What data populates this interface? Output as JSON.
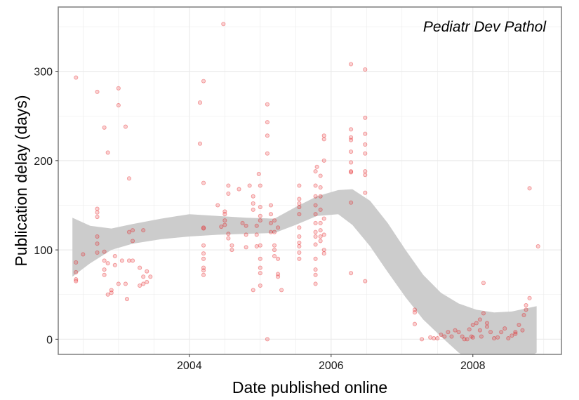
{
  "chart_data": {
    "type": "scatter",
    "title": "",
    "annotation": "Pediatr Dev Pathol",
    "xlabel": "Date published online",
    "ylabel": "Publication delay (days)",
    "xlim": [
      2002.15,
      2009.25
    ],
    "ylim": [
      -17,
      372
    ],
    "x_ticks": [
      2004,
      2006,
      2008
    ],
    "x_tick_labels": [
      "2004",
      "2006",
      "2008"
    ],
    "y_ticks": [
      0,
      100,
      200,
      300
    ],
    "y_tick_labels": [
      "0",
      "100",
      "200",
      "300"
    ],
    "grid": true,
    "point_color": "#e41a1c",
    "band_color": "#cccccc",
    "points": [
      [
        2002.4,
        293
      ],
      [
        2002.4,
        86
      ],
      [
        2002.4,
        75
      ],
      [
        2002.4,
        67
      ],
      [
        2002.4,
        65
      ],
      [
        2002.5,
        95
      ],
      [
        2002.7,
        277
      ],
      [
        2002.7,
        146
      ],
      [
        2002.7,
        142
      ],
      [
        2002.7,
        137
      ],
      [
        2002.7,
        115
      ],
      [
        2002.7,
        107
      ],
      [
        2002.7,
        97
      ],
      [
        2002.8,
        237
      ],
      [
        2002.8,
        98
      ],
      [
        2002.8,
        88
      ],
      [
        2002.8,
        78
      ],
      [
        2002.8,
        72
      ],
      [
        2002.85,
        209
      ],
      [
        2002.85,
        85
      ],
      [
        2002.85,
        50
      ],
      [
        2002.9,
        55
      ],
      [
        2002.9,
        52
      ],
      [
        2002.95,
        93
      ],
      [
        2002.95,
        83
      ],
      [
        2003.05,
        88
      ],
      [
        2003.0,
        62
      ],
      [
        2003.1,
        62
      ],
      [
        2003.0,
        281
      ],
      [
        2003.0,
        262
      ],
      [
        2003.1,
        238
      ],
      [
        2003.15,
        180
      ],
      [
        2003.2,
        122
      ],
      [
        2003.15,
        120
      ],
      [
        2003.2,
        110
      ],
      [
        2003.15,
        88
      ],
      [
        2003.2,
        88
      ],
      [
        2003.12,
        45
      ],
      [
        2003.35,
        122
      ],
      [
        2003.3,
        80
      ],
      [
        2003.4,
        76
      ],
      [
        2003.35,
        70
      ],
      [
        2003.45,
        70
      ],
      [
        2003.4,
        64
      ],
      [
        2003.35,
        62
      ],
      [
        2003.3,
        60
      ],
      [
        2004.15,
        265
      ],
      [
        2004.15,
        219
      ],
      [
        2004.2,
        289
      ],
      [
        2004.2,
        175
      ],
      [
        2004.2,
        125
      ],
      [
        2004.2,
        105
      ],
      [
        2004.2,
        96
      ],
      [
        2004.2,
        90
      ],
      [
        2004.2,
        80
      ],
      [
        2004.2,
        77
      ],
      [
        2004.2,
        72
      ],
      [
        2004.2,
        124
      ],
      [
        2004.4,
        150
      ],
      [
        2004.45,
        126
      ],
      [
        2004.48,
        353
      ],
      [
        2004.5,
        143
      ],
      [
        2004.5,
        140
      ],
      [
        2004.5,
        133
      ],
      [
        2004.5,
        128
      ],
      [
        2004.55,
        172
      ],
      [
        2004.55,
        163
      ],
      [
        2004.55,
        118
      ],
      [
        2004.55,
        113
      ],
      [
        2004.6,
        105
      ],
      [
        2004.6,
        100
      ],
      [
        2004.7,
        168
      ],
      [
        2004.75,
        130
      ],
      [
        2004.8,
        127
      ],
      [
        2004.8,
        117
      ],
      [
        2004.8,
        103
      ],
      [
        2004.85,
        172
      ],
      [
        2004.9,
        160
      ],
      [
        2004.9,
        152
      ],
      [
        2004.9,
        145
      ],
      [
        2004.95,
        127
      ],
      [
        2004.95,
        117
      ],
      [
        2004.95,
        104
      ],
      [
        2004.98,
        185
      ],
      [
        2005.0,
        172
      ],
      [
        2005.0,
        148
      ],
      [
        2005.0,
        138
      ],
      [
        2005.0,
        133
      ],
      [
        2005.0,
        105
      ],
      [
        2005.0,
        90
      ],
      [
        2005.0,
        80
      ],
      [
        2005.0,
        74
      ],
      [
        2005.0,
        60
      ],
      [
        2004.9,
        55
      ],
      [
        2005.1,
        263
      ],
      [
        2005.1,
        243
      ],
      [
        2005.1,
        228
      ],
      [
        2005.1,
        208
      ],
      [
        2005.15,
        150
      ],
      [
        2005.15,
        140
      ],
      [
        2005.15,
        130
      ],
      [
        2005.15,
        120
      ],
      [
        2005.1,
        0
      ],
      [
        2005.2,
        133
      ],
      [
        2005.2,
        120
      ],
      [
        2005.2,
        105
      ],
      [
        2005.2,
        93
      ],
      [
        2005.25,
        90
      ],
      [
        2005.25,
        73
      ],
      [
        2005.25,
        70
      ],
      [
        2005.3,
        55
      ],
      [
        2005.25,
        125
      ],
      [
        2005.2,
        100
      ],
      [
        2005.55,
        172
      ],
      [
        2005.55,
        157
      ],
      [
        2005.55,
        152
      ],
      [
        2005.55,
        148
      ],
      [
        2005.55,
        140
      ],
      [
        2005.55,
        125
      ],
      [
        2005.55,
        115
      ],
      [
        2005.55,
        108
      ],
      [
        2005.55,
        104
      ],
      [
        2005.55,
        97
      ],
      [
        2005.55,
        90
      ],
      [
        2005.78,
        188
      ],
      [
        2005.78,
        172
      ],
      [
        2005.78,
        160
      ],
      [
        2005.78,
        150
      ],
      [
        2005.78,
        140
      ],
      [
        2005.78,
        130
      ],
      [
        2005.78,
        120
      ],
      [
        2005.78,
        115
      ],
      [
        2005.78,
        106
      ],
      [
        2005.78,
        90
      ],
      [
        2005.78,
        78
      ],
      [
        2005.78,
        72
      ],
      [
        2005.78,
        62
      ],
      [
        2005.8,
        193
      ],
      [
        2005.85,
        183
      ],
      [
        2005.85,
        170
      ],
      [
        2005.85,
        160
      ],
      [
        2005.85,
        145
      ],
      [
        2005.85,
        130
      ],
      [
        2005.85,
        122
      ],
      [
        2005.85,
        115
      ],
      [
        2005.85,
        110
      ],
      [
        2005.9,
        228
      ],
      [
        2005.9,
        224
      ],
      [
        2005.9,
        200
      ],
      [
        2005.9,
        135
      ],
      [
        2005.9,
        117
      ],
      [
        2005.9,
        100
      ],
      [
        2005.9,
        96
      ],
      [
        2006.28,
        308
      ],
      [
        2006.28,
        235
      ],
      [
        2006.28,
        226
      ],
      [
        2006.28,
        223
      ],
      [
        2006.28,
        210
      ],
      [
        2006.28,
        198
      ],
      [
        2006.28,
        188
      ],
      [
        2006.28,
        187
      ],
      [
        2006.28,
        153
      ],
      [
        2006.28,
        74
      ],
      [
        2006.48,
        302
      ],
      [
        2006.48,
        248
      ],
      [
        2006.48,
        230
      ],
      [
        2006.48,
        218
      ],
      [
        2006.48,
        208
      ],
      [
        2006.48,
        188
      ],
      [
        2006.48,
        184
      ],
      [
        2006.48,
        164
      ],
      [
        2006.48,
        65
      ],
      [
        2007.18,
        33
      ],
      [
        2007.18,
        30
      ],
      [
        2007.18,
        17
      ],
      [
        2007.28,
        0
      ],
      [
        2007.4,
        2
      ],
      [
        2007.45,
        1
      ],
      [
        2007.5,
        1
      ],
      [
        2007.55,
        5
      ],
      [
        2007.6,
        3
      ],
      [
        2007.65,
        8
      ],
      [
        2007.7,
        3
      ],
      [
        2007.75,
        10
      ],
      [
        2007.8,
        8
      ],
      [
        2007.85,
        3
      ],
      [
        2007.88,
        0
      ],
      [
        2007.92,
        0
      ],
      [
        2007.95,
        11
      ],
      [
        2007.98,
        3
      ],
      [
        2008.0,
        2
      ],
      [
        2008.0,
        16
      ],
      [
        2008.05,
        18
      ],
      [
        2008.1,
        22
      ],
      [
        2008.1,
        10
      ],
      [
        2008.12,
        3
      ],
      [
        2008.15,
        29
      ],
      [
        2008.15,
        63
      ],
      [
        2008.2,
        18
      ],
      [
        2008.2,
        14
      ],
      [
        2008.25,
        8
      ],
      [
        2008.3,
        1
      ],
      [
        2008.35,
        2
      ],
      [
        2008.4,
        8
      ],
      [
        2008.45,
        12
      ],
      [
        2008.5,
        1
      ],
      [
        2008.55,
        4
      ],
      [
        2008.6,
        8
      ],
      [
        2008.6,
        6
      ],
      [
        2008.65,
        16
      ],
      [
        2008.7,
        10
      ],
      [
        2008.72,
        27
      ],
      [
        2008.75,
        38
      ],
      [
        2008.75,
        33
      ],
      [
        2008.8,
        46
      ],
      [
        2008.8,
        169
      ],
      [
        2008.92,
        104
      ]
    ],
    "smooth_band": {
      "x": [
        2002.35,
        2002.6,
        2002.9,
        2003.2,
        2003.6,
        2004.0,
        2004.4,
        2004.8,
        2005.2,
        2005.5,
        2005.8,
        2006.1,
        2006.3,
        2006.55,
        2006.8,
        2007.05,
        2007.3,
        2007.55,
        2007.8,
        2008.05,
        2008.3,
        2008.55,
        2008.9
      ],
      "upper": [
        136,
        127,
        124,
        129,
        135,
        140,
        138,
        136,
        135,
        148,
        160,
        167,
        168,
        155,
        130,
        100,
        72,
        52,
        40,
        33,
        30,
        31,
        37
      ],
      "lower": [
        70,
        85,
        100,
        107,
        112,
        115,
        117,
        118,
        119,
        128,
        138,
        140,
        128,
        104,
        75,
        47,
        22,
        3,
        -15,
        -28,
        -35,
        -32,
        -15
      ]
    }
  }
}
